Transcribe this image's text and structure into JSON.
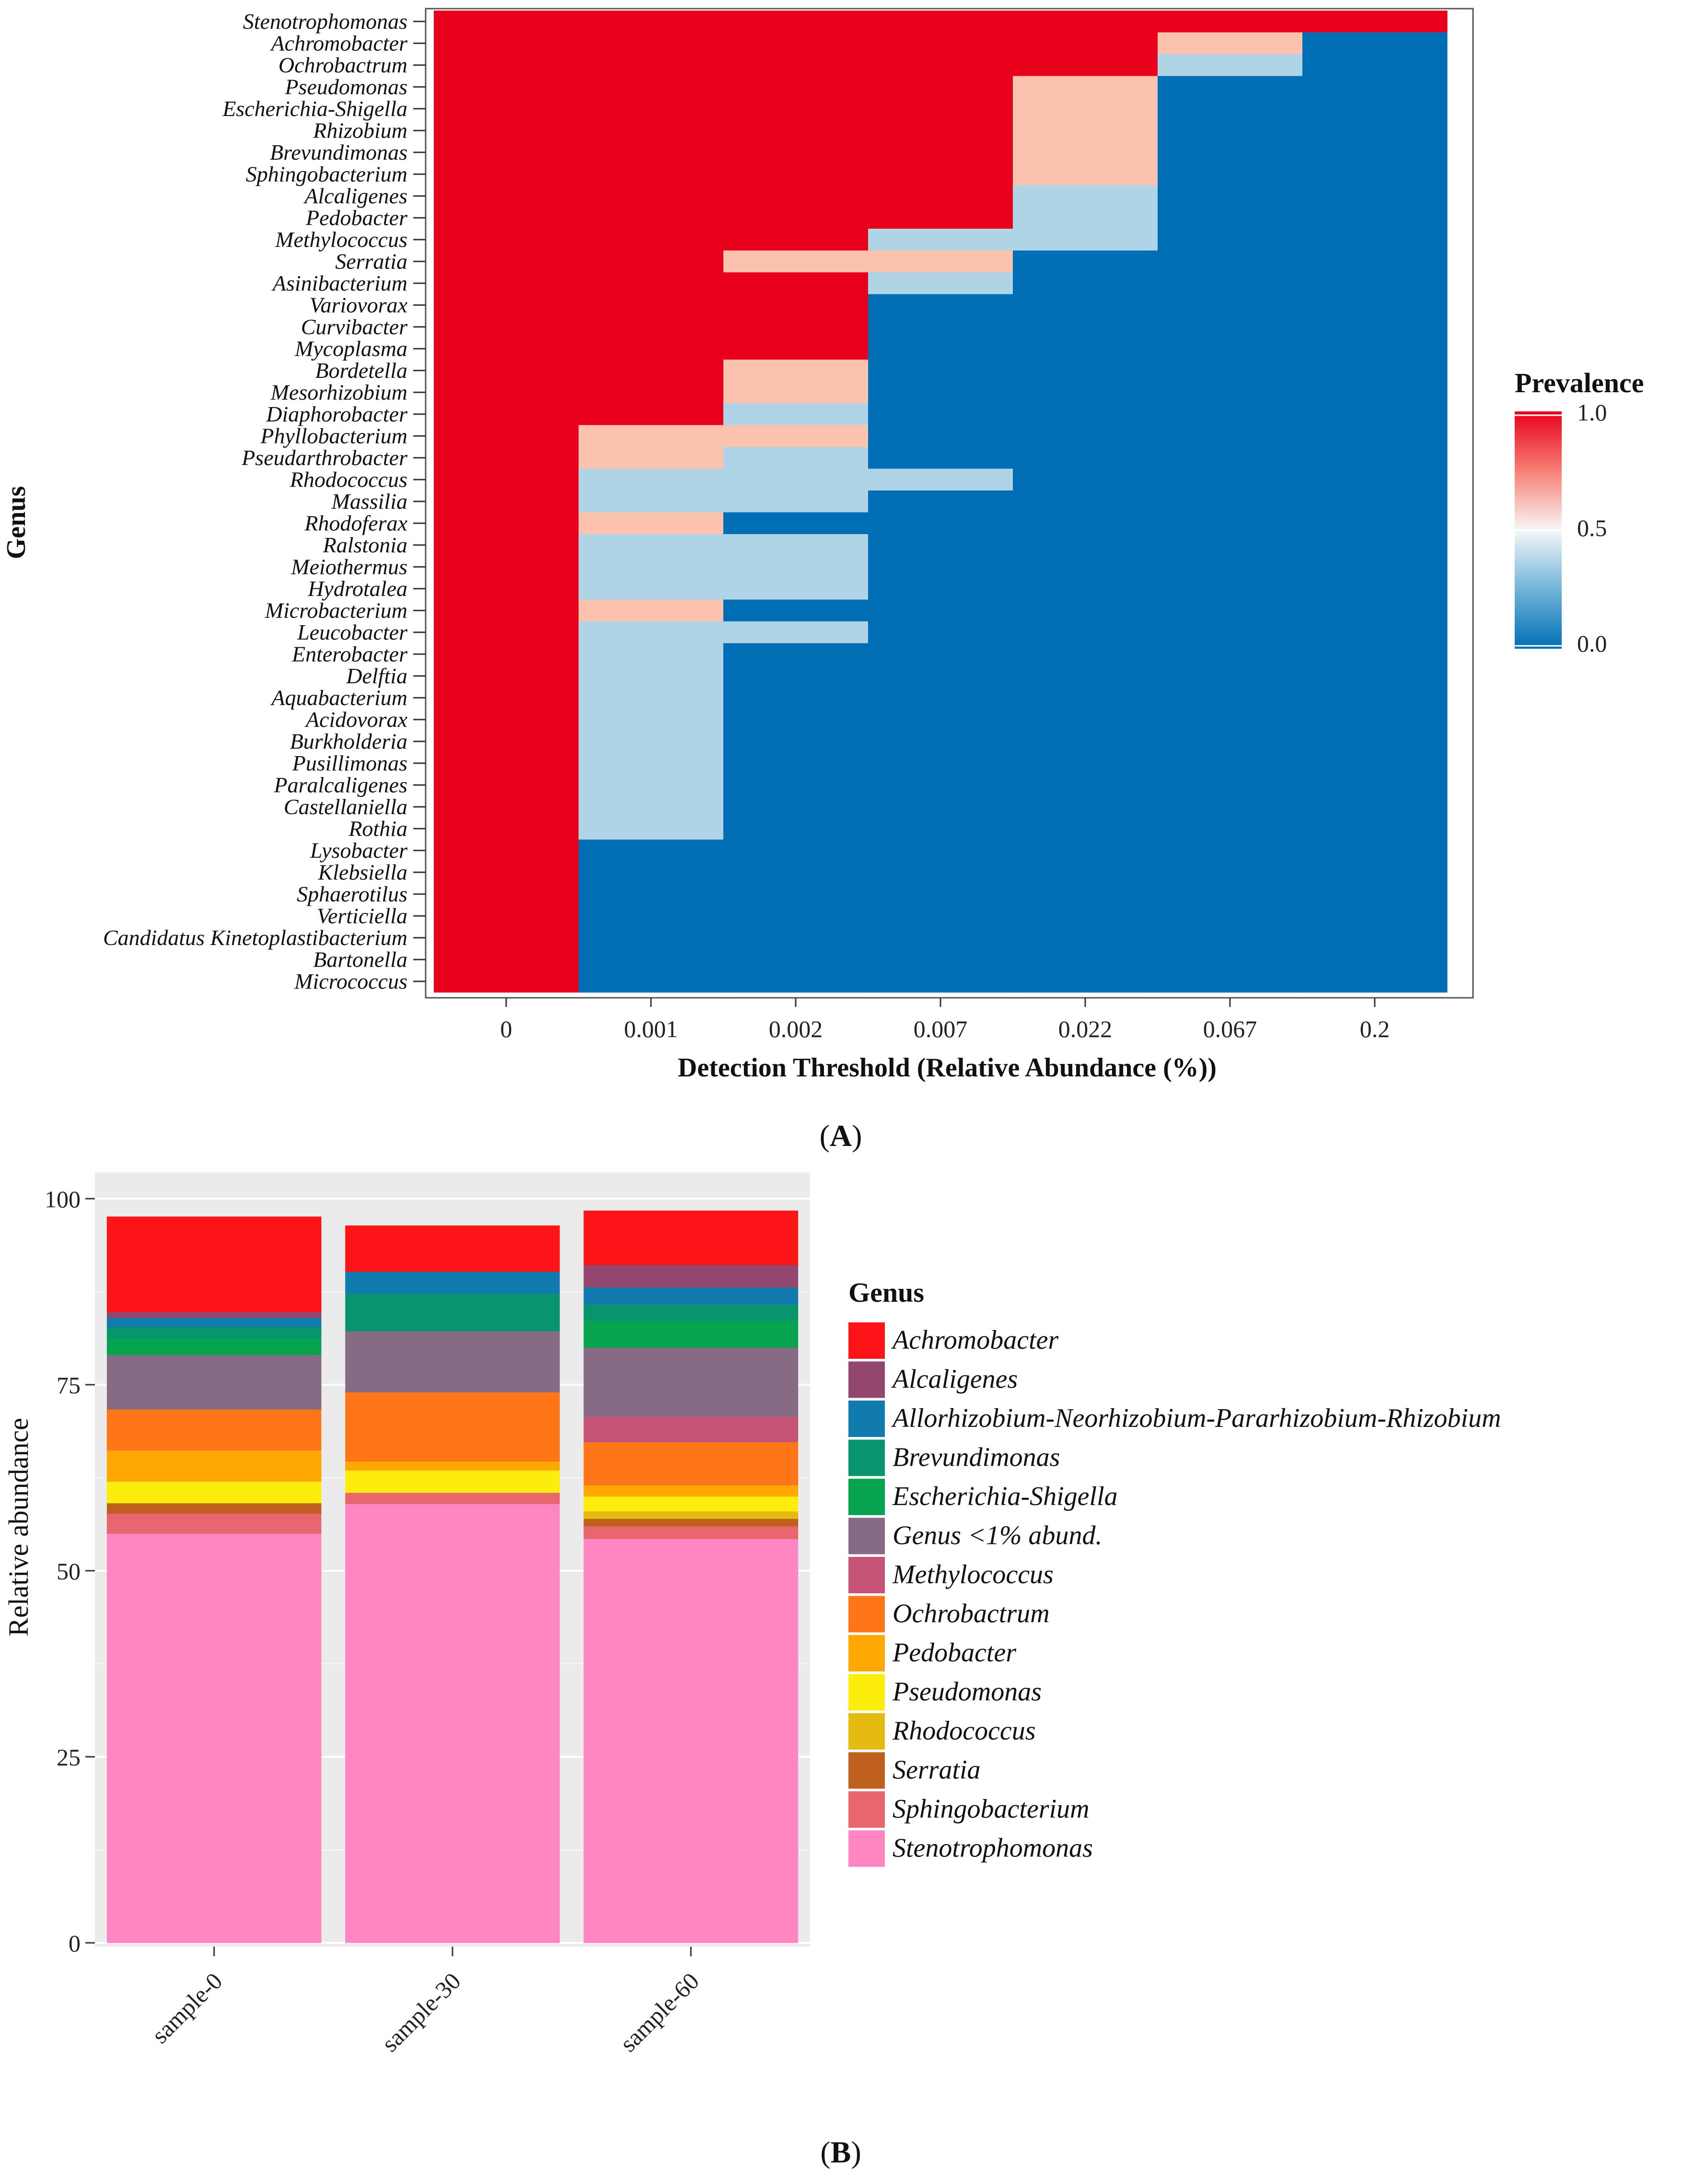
{
  "colors": {
    "red": "#e8001c",
    "salmon": "#fbc3ae",
    "lightblue": "#aed4e6",
    "blue": "#006eb4"
  },
  "panel_a": {
    "label_text": "A"
  },
  "panel_b": {
    "label_text": "B"
  },
  "chart_data": [
    {
      "type": "heatmap",
      "xlabel": "Detection Threshold (Relative Abundance (%))",
      "ylabel": "Genus",
      "x_categories": [
        "0",
        "0.001",
        "0.002",
        "0.007",
        "0.022",
        "0.067",
        "0.2"
      ],
      "genera": [
        "Stenotrophomonas",
        "Achromobacter",
        "Ochrobactrum",
        "Pseudomonas",
        "Escherichia-Shigella",
        "Rhizobium",
        "Brevundimonas",
        "Sphingobacterium",
        "Alcaligenes",
        "Pedobacter",
        "Methylococcus",
        "Serratia",
        "Asinibacterium",
        "Variovorax",
        "Curvibacter",
        "Mycoplasma",
        "Bordetella",
        "Mesorhizobium",
        "Diaphorobacter",
        "Phyllobacterium",
        "Pseudarthrobacter",
        "Rhodococcus",
        "Massilia",
        "Rhodoferax",
        "Ralstonia",
        "Meiothermus",
        "Hydrotalea",
        "Microbacterium",
        "Leucobacter",
        "Enterobacter",
        "Delftia",
        "Aquabacterium",
        "Acidovorax",
        "Burkholderia",
        "Pusillimonas",
        "Paralcaligenes",
        "Castellaniella",
        "Rothia",
        "Lysobacter",
        "Klebsiella",
        "Sphaerotilus",
        "Verticiella",
        "Candidatus Kinetoplastibacterium",
        "Bartonella",
        "Micrococcus"
      ],
      "values": [
        [
          1,
          1,
          1,
          1,
          1,
          1,
          1
        ],
        [
          1,
          1,
          1,
          1,
          1,
          0.67,
          0
        ],
        [
          1,
          1,
          1,
          1,
          1,
          0.33,
          0
        ],
        [
          1,
          1,
          1,
          1,
          0.67,
          0,
          0
        ],
        [
          1,
          1,
          1,
          1,
          0.67,
          0,
          0
        ],
        [
          1,
          1,
          1,
          1,
          0.67,
          0,
          0
        ],
        [
          1,
          1,
          1,
          1,
          0.67,
          0,
          0
        ],
        [
          1,
          1,
          1,
          1,
          0.67,
          0,
          0
        ],
        [
          1,
          1,
          1,
          1,
          0.33,
          0,
          0
        ],
        [
          1,
          1,
          1,
          1,
          0.33,
          0,
          0
        ],
        [
          1,
          1,
          1,
          0.33,
          0.33,
          0,
          0
        ],
        [
          1,
          1,
          0.67,
          0.67,
          0,
          0,
          0
        ],
        [
          1,
          1,
          1,
          0.33,
          0,
          0,
          0
        ],
        [
          1,
          1,
          1,
          0,
          0,
          0,
          0
        ],
        [
          1,
          1,
          1,
          0,
          0,
          0,
          0
        ],
        [
          1,
          1,
          1,
          0,
          0,
          0,
          0
        ],
        [
          1,
          1,
          0.67,
          0,
          0,
          0,
          0
        ],
        [
          1,
          1,
          0.67,
          0,
          0,
          0,
          0
        ],
        [
          1,
          1,
          0.33,
          0,
          0,
          0,
          0
        ],
        [
          1,
          0.67,
          0.67,
          0,
          0,
          0,
          0
        ],
        [
          1,
          0.67,
          0.33,
          0,
          0,
          0,
          0
        ],
        [
          1,
          0.33,
          0.33,
          0.33,
          0,
          0,
          0
        ],
        [
          1,
          0.33,
          0.33,
          0,
          0,
          0,
          0
        ],
        [
          1,
          0.67,
          0,
          0,
          0,
          0,
          0
        ],
        [
          1,
          0.33,
          0.33,
          0,
          0,
          0,
          0
        ],
        [
          1,
          0.33,
          0.33,
          0,
          0,
          0,
          0
        ],
        [
          1,
          0.33,
          0.33,
          0,
          0,
          0,
          0
        ],
        [
          1,
          0.67,
          0,
          0,
          0,
          0,
          0
        ],
        [
          1,
          0.33,
          0.33,
          0,
          0,
          0,
          0
        ],
        [
          1,
          0.33,
          0,
          0,
          0,
          0,
          0
        ],
        [
          1,
          0.33,
          0,
          0,
          0,
          0,
          0
        ],
        [
          1,
          0.33,
          0,
          0,
          0,
          0,
          0
        ],
        [
          1,
          0.33,
          0,
          0,
          0,
          0,
          0
        ],
        [
          1,
          0.33,
          0,
          0,
          0,
          0,
          0
        ],
        [
          1,
          0.33,
          0,
          0,
          0,
          0,
          0
        ],
        [
          1,
          0.33,
          0,
          0,
          0,
          0,
          0
        ],
        [
          1,
          0.33,
          0,
          0,
          0,
          0,
          0
        ],
        [
          1,
          0.33,
          0,
          0,
          0,
          0,
          0
        ],
        [
          1,
          0,
          0,
          0,
          0,
          0,
          0
        ],
        [
          1,
          0,
          0,
          0,
          0,
          0,
          0
        ],
        [
          1,
          0,
          0,
          0,
          0,
          0,
          0
        ],
        [
          1,
          0,
          0,
          0,
          0,
          0,
          0
        ],
        [
          1,
          0,
          0,
          0,
          0,
          0,
          0
        ],
        [
          1,
          0,
          0,
          0,
          0,
          0,
          0
        ],
        [
          1,
          0,
          0,
          0,
          0,
          0,
          0
        ]
      ],
      "legend": {
        "title": "Prevalence",
        "tick_labels": [
          "1.0",
          "0.5",
          "0.0"
        ],
        "range": [
          0,
          1
        ]
      }
    },
    {
      "type": "bar",
      "stacked": true,
      "ylabel": "Relative abundance",
      "xlabel": "",
      "ylim": [
        0,
        100
      ],
      "y_ticks": [
        0,
        25,
        50,
        75,
        100
      ],
      "categories": [
        "sample-0",
        "sample-30",
        "sample-60"
      ],
      "legend_title": "Genus",
      "series": [
        {
          "name": "Stenotrophomonas",
          "color": "#ff86c1",
          "values": [
            55,
            59,
            54.3
          ]
        },
        {
          "name": "Sphingobacterium",
          "color": "#e8666e",
          "values": [
            2.7,
            1.5,
            1.7
          ]
        },
        {
          "name": "Serratia",
          "color": "#c0601e",
          "values": [
            1.4,
            0,
            1
          ]
        },
        {
          "name": "Rhodococcus",
          "color": "#e5ba11",
          "values": [
            0,
            0,
            1
          ]
        },
        {
          "name": "Pseudomonas",
          "color": "#fced0c",
          "values": [
            2.9,
            3,
            2
          ]
        },
        {
          "name": "Pedobacter",
          "color": "#ffa803",
          "values": [
            4.2,
            1.2,
            1.5
          ]
        },
        {
          "name": "Ochrobactrum",
          "color": "#ff7619",
          "values": [
            5.5,
            9.3,
            5.8
          ]
        },
        {
          "name": "Methylococcus",
          "color": "#c65477",
          "values": [
            0,
            0,
            3.4
          ]
        },
        {
          "name": "Genus <1% abund.",
          "color": "#876a84",
          "values": [
            7.3,
            8.2,
            9.3
          ]
        },
        {
          "name": "Escherichia-Shigella",
          "color": "#08a34f",
          "values": [
            2.3,
            0,
            3.6
          ]
        },
        {
          "name": "Brevundimonas",
          "color": "#08946d",
          "values": [
            1.5,
            5,
            2.2
          ]
        },
        {
          "name": "Allorhizobium-Neorhizobium-Pararhizobium-Rhizobium",
          "color": "#107bac",
          "values": [
            1.2,
            3,
            2.3
          ]
        },
        {
          "name": "Alcaligenes",
          "color": "#93466e",
          "values": [
            0.8,
            0,
            3
          ]
        },
        {
          "name": "Achromobacter",
          "color": "#fd1419",
          "values": [
            12.8,
            6.2,
            7.3
          ]
        }
      ],
      "legend_order": [
        "Achromobacter",
        "Alcaligenes",
        "Allorhizobium-Neorhizobium-Pararhizobium-Rhizobium",
        "Brevundimonas",
        "Escherichia-Shigella",
        "Genus <1% abund.",
        "Methylococcus",
        "Ochrobactrum",
        "Pedobacter",
        "Pseudomonas",
        "Rhodococcus",
        "Serratia",
        "Sphingobacterium",
        "Stenotrophomonas"
      ]
    }
  ]
}
